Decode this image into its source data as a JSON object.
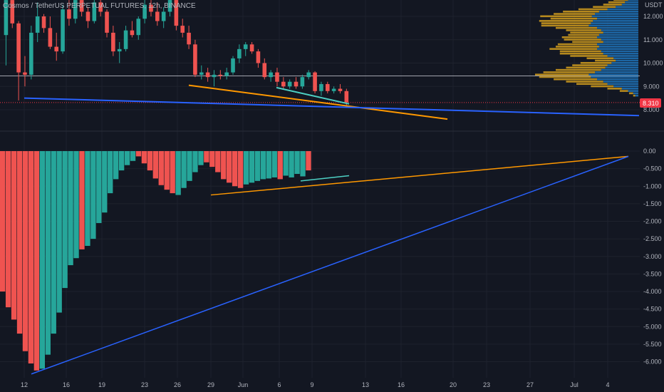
{
  "chart_data": [
    {
      "type": "candlestick",
      "title": "Cosmos / TetherUS PERPETUAL FUTURES, 12h, BINANCE",
      "y_unit": "USDT",
      "ylim": [
        7.6,
        13.2
      ],
      "y_ticks": [
        12.0,
        11.0,
        10.0,
        9.0,
        8.0
      ],
      "y_tick_labels": [
        "12.000",
        "11.000",
        "10.000",
        "9.000",
        "8.000"
      ],
      "last_price_label": "8.310",
      "last_price": 8.31,
      "horizontal_line_price": 9.45,
      "x_tick_labels": [
        "12",
        "16",
        "19",
        "23",
        "26",
        "29",
        "Jun",
        "6",
        "9",
        "13",
        "16",
        "20",
        "23",
        "27",
        "Jul",
        "4"
      ],
      "colors": {
        "up": "#26a69a",
        "down": "#ef5350",
        "background": "#131722",
        "trend_orange": "#ff9800",
        "trend_blue": "#2962ff",
        "trend_teal": "#4dd0c4",
        "last_price": "#f23645",
        "volume_up": "#1f6fb2",
        "volume_down": "#c8961e"
      },
      "candles_ohlc": [
        [
          11.2,
          12.9,
          9.9,
          12.7
        ],
        [
          12.7,
          12.9,
          11.5,
          11.7
        ],
        [
          11.7,
          11.8,
          8.4,
          9.6
        ],
        [
          9.6,
          10.3,
          9.0,
          9.5
        ],
        [
          9.5,
          11.6,
          9.3,
          11.3
        ],
        [
          11.3,
          12.6,
          10.9,
          12.0
        ],
        [
          12.0,
          12.1,
          11.3,
          11.5
        ],
        [
          11.5,
          12.0,
          10.6,
          10.7
        ],
        [
          10.7,
          11.3,
          10.1,
          10.5
        ],
        [
          10.5,
          12.5,
          10.4,
          12.3
        ],
        [
          12.3,
          12.7,
          11.6,
          11.9
        ],
        [
          11.9,
          12.9,
          11.7,
          12.7
        ],
        [
          12.7,
          13.0,
          12.0,
          12.2
        ],
        [
          12.2,
          12.4,
          11.5,
          11.8
        ],
        [
          11.8,
          12.9,
          11.7,
          12.6
        ],
        [
          12.6,
          13.0,
          12.0,
          12.2
        ],
        [
          12.2,
          12.3,
          11.1,
          11.3
        ],
        [
          11.3,
          11.6,
          10.3,
          10.5
        ],
        [
          10.5,
          10.9,
          10.0,
          10.6
        ],
        [
          10.6,
          11.6,
          10.5,
          11.4
        ],
        [
          11.4,
          11.8,
          11.1,
          11.2
        ],
        [
          11.2,
          12.0,
          11.0,
          11.9
        ],
        [
          11.9,
          12.9,
          11.7,
          12.5
        ],
        [
          12.5,
          13.0,
          12.0,
          12.2
        ],
        [
          12.2,
          12.6,
          11.6,
          11.8
        ],
        [
          11.8,
          12.4,
          11.5,
          12.2
        ],
        [
          12.2,
          13.0,
          12.0,
          12.7
        ],
        [
          12.7,
          12.8,
          11.4,
          11.6
        ],
        [
          11.6,
          11.9,
          11.1,
          11.3
        ],
        [
          11.3,
          11.6,
          10.6,
          10.8
        ],
        [
          10.8,
          11.0,
          9.4,
          9.5
        ],
        [
          9.5,
          9.9,
          9.3,
          9.6
        ],
        [
          9.6,
          9.8,
          9.2,
          9.4
        ],
        [
          9.4,
          9.7,
          9.0,
          9.5
        ],
        [
          9.5,
          9.7,
          9.3,
          9.45
        ],
        [
          9.45,
          9.8,
          9.3,
          9.6
        ],
        [
          9.6,
          10.3,
          9.5,
          10.2
        ],
        [
          10.2,
          10.8,
          10.0,
          10.6
        ],
        [
          10.6,
          10.9,
          10.3,
          10.8
        ],
        [
          10.8,
          10.9,
          10.4,
          10.5
        ],
        [
          10.5,
          10.6,
          9.8,
          10.0
        ],
        [
          10.0,
          10.2,
          9.3,
          9.4
        ],
        [
          9.4,
          9.7,
          9.2,
          9.6
        ],
        [
          9.6,
          9.8,
          9.0,
          9.2
        ],
        [
          9.2,
          9.4,
          8.9,
          9.0
        ],
        [
          9.0,
          9.3,
          8.9,
          9.2
        ],
        [
          9.2,
          9.4,
          8.9,
          9.0
        ],
        [
          9.0,
          9.5,
          8.9,
          9.4
        ],
        [
          9.4,
          9.7,
          9.3,
          9.6
        ],
        [
          9.6,
          9.65,
          8.7,
          8.8
        ],
        [
          8.8,
          9.2,
          8.6,
          9.1
        ],
        [
          9.1,
          9.2,
          8.7,
          8.8
        ],
        [
          8.8,
          9.0,
          8.7,
          8.9
        ],
        [
          8.9,
          9.1,
          8.7,
          8.8
        ],
        [
          8.8,
          8.9,
          8.2,
          8.31
        ]
      ],
      "trendlines": [
        {
          "color": "orange",
          "from": {
            "x": "26",
            "y": 9.05
          },
          "to": {
            "x": "20",
            "y": 7.6
          }
        },
        {
          "color": "blue",
          "from": {
            "x": "12",
            "y": 8.5
          },
          "to": {
            "x": "4",
            "y": 7.75
          }
        },
        {
          "color": "teal",
          "from": {
            "x": "Jun",
            "y": 8.95
          },
          "to": {
            "x": "9",
            "y": 8.25
          }
        }
      ],
      "volume_profile_rows": [
        {
          "price": 13.1,
          "up": 0.02,
          "down": 0.03
        },
        {
          "price": 13.0,
          "up": 0.03,
          "down": 0.05
        },
        {
          "price": 12.9,
          "up": 0.05,
          "down": 0.08
        },
        {
          "price": 12.8,
          "up": 0.07,
          "down": 0.1
        },
        {
          "price": 12.7,
          "up": 0.1,
          "down": 0.14
        },
        {
          "price": 12.6,
          "up": 0.13,
          "down": 0.16
        },
        {
          "price": 12.5,
          "up": 0.16,
          "down": 0.18
        },
        {
          "price": 12.4,
          "up": 0.22,
          "down": 0.22
        },
        {
          "price": 12.3,
          "up": 0.3,
          "down": 0.28
        },
        {
          "price": 12.2,
          "up": 0.38,
          "down": 0.35
        },
        {
          "price": 12.1,
          "up": 0.42,
          "down": 0.4
        },
        {
          "price": 12.0,
          "up": 0.45,
          "down": 0.5
        },
        {
          "price": 11.9,
          "up": 0.4,
          "down": 0.45
        },
        {
          "price": 11.8,
          "up": 0.44,
          "down": 0.52
        },
        {
          "price": 11.7,
          "up": 0.46,
          "down": 0.48
        },
        {
          "price": 11.6,
          "up": 0.48,
          "down": 0.46
        },
        {
          "price": 11.5,
          "up": 0.4,
          "down": 0.4
        },
        {
          "price": 11.4,
          "up": 0.36,
          "down": 0.34
        },
        {
          "price": 11.3,
          "up": 0.34,
          "down": 0.32
        },
        {
          "price": 11.2,
          "up": 0.38,
          "down": 0.3
        },
        {
          "price": 11.1,
          "up": 0.4,
          "down": 0.34
        },
        {
          "price": 11.0,
          "up": 0.36,
          "down": 0.36
        },
        {
          "price": 10.9,
          "up": 0.34,
          "down": 0.3
        },
        {
          "price": 10.8,
          "up": 0.4,
          "down": 0.38
        },
        {
          "price": 10.7,
          "up": 0.38,
          "down": 0.42
        },
        {
          "price": 10.6,
          "up": 0.4,
          "down": 0.46
        },
        {
          "price": 10.5,
          "up": 0.36,
          "down": 0.4
        },
        {
          "price": 10.4,
          "up": 0.34,
          "down": 0.42
        },
        {
          "price": 10.3,
          "up": 0.3,
          "down": 0.36
        },
        {
          "price": 10.2,
          "up": 0.24,
          "down": 0.26
        },
        {
          "price": 10.1,
          "up": 0.22,
          "down": 0.2
        },
        {
          "price": 10.0,
          "up": 0.26,
          "down": 0.3
        },
        {
          "price": 9.9,
          "up": 0.3,
          "down": 0.34
        },
        {
          "price": 9.8,
          "up": 0.32,
          "down": 0.38
        },
        {
          "price": 9.7,
          "up": 0.36,
          "down": 0.44
        },
        {
          "price": 9.6,
          "up": 0.42,
          "down": 0.5
        },
        {
          "price": 9.5,
          "up": 0.48,
          "down": 0.52
        },
        {
          "price": 9.4,
          "up": 0.46,
          "down": 0.5
        },
        {
          "price": 9.3,
          "up": 0.4,
          "down": 0.42
        },
        {
          "price": 9.2,
          "up": 0.34,
          "down": 0.36
        },
        {
          "price": 9.1,
          "up": 0.3,
          "down": 0.3
        },
        {
          "price": 9.0,
          "up": 0.24,
          "down": 0.22
        },
        {
          "price": 8.9,
          "up": 0.16,
          "down": 0.14
        },
        {
          "price": 8.8,
          "up": 0.1,
          "down": 0.08
        },
        {
          "price": 8.7,
          "up": 0.05,
          "down": 0.04
        },
        {
          "price": 8.6,
          "up": 0.03,
          "down": 0.02
        }
      ]
    },
    {
      "type": "bar",
      "ylim": [
        -6.3,
        0.2
      ],
      "y_ticks": [
        0,
        -0.5,
        -1.0,
        -1.5,
        -2.0,
        -2.5,
        -3.0,
        -3.5,
        -4.0,
        -4.5,
        -5.0,
        -5.5,
        -6.0
      ],
      "y_tick_labels": [
        "0.00",
        "-0.500",
        "-1.000",
        "-1.500",
        "-2.000",
        "-2.500",
        "-3.000",
        "-3.500",
        "-4.000",
        "-4.500",
        "-5.000",
        "-5.500",
        "-6.000"
      ],
      "values": [
        -4.0,
        -4.45,
        -4.8,
        -5.2,
        -5.7,
        -6.05,
        -6.25,
        -6.2,
        -5.8,
        -5.2,
        -4.6,
        -3.9,
        -3.25,
        -3.05,
        -2.8,
        -2.7,
        -2.5,
        -2.05,
        -1.75,
        -1.2,
        -0.8,
        -0.55,
        -0.4,
        -0.28,
        -0.15,
        -0.35,
        -0.55,
        -0.78,
        -0.97,
        -1.1,
        -1.2,
        -1.25,
        -1.05,
        -0.85,
        -0.6,
        -0.4,
        -0.32,
        -0.45,
        -0.6,
        -0.8,
        -0.9,
        -1.0,
        -1.05,
        -0.95,
        -0.9,
        -0.85,
        -0.8,
        -0.78,
        -0.75,
        -0.8,
        -0.7,
        -0.75,
        -0.65,
        -0.72,
        -0.55
      ],
      "colors": [
        "down",
        "down",
        "down",
        "down",
        "down",
        "down",
        "down",
        "up",
        "up",
        "up",
        "up",
        "up",
        "up",
        "up",
        "down",
        "up",
        "up",
        "up",
        "up",
        "up",
        "up",
        "up",
        "up",
        "up",
        "down",
        "down",
        "down",
        "down",
        "down",
        "down",
        "down",
        "up",
        "up",
        "up",
        "up",
        "up",
        "down",
        "down",
        "down",
        "down",
        "down",
        "down",
        "down",
        "up",
        "up",
        "up",
        "up",
        "up",
        "up",
        "down",
        "up",
        "up",
        "up",
        "up",
        "down"
      ],
      "trendlines": [
        {
          "color": "orange",
          "from": {
            "x": "29",
            "y": -1.25
          },
          "to": {
            "x": "4",
            "y": -0.15
          }
        },
        {
          "color": "blue",
          "from": {
            "x": "12",
            "y": -6.35
          },
          "to": {
            "x": "4",
            "y": -0.15
          }
        },
        {
          "color": "teal",
          "from": {
            "x": "6",
            "y": -0.85
          },
          "to": {
            "x": "9",
            "y": -0.7
          }
        }
      ]
    }
  ]
}
